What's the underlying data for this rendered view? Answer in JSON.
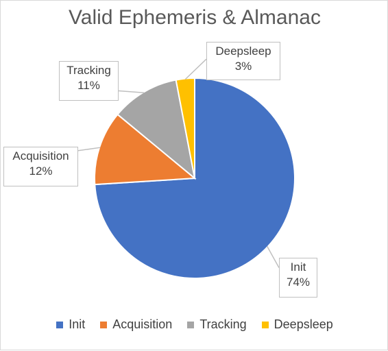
{
  "chart_data": {
    "type": "pie",
    "title": "Valid Ephemeris & Almanac",
    "categories": [
      "Init",
      "Acquisition",
      "Tracking",
      "Deepsleep"
    ],
    "values": [
      74,
      12,
      11,
      3
    ],
    "data_labels": [
      "74%",
      "12%",
      "11%",
      "3%"
    ],
    "colors": [
      "#4472C4",
      "#ED7D31",
      "#A5A5A5",
      "#FFC000"
    ],
    "legend_position": "bottom",
    "start_angle_deg": 0,
    "direction": "clockwise"
  }
}
